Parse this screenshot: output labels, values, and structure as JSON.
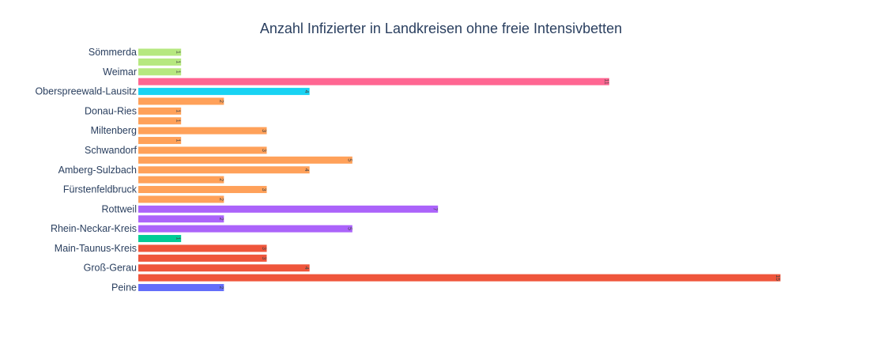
{
  "chart_data": {
    "type": "bar",
    "orientation": "horizontal",
    "title": "Anzahl Infizierter in Landkreisen ohne freie Intensivbetten",
    "xlabel": "",
    "ylabel": "",
    "xlim": [
      0,
      15.6
    ],
    "grid": false,
    "legend": "none",
    "bars": [
      {
        "label": "Sömmerda",
        "value": 1,
        "color": "#b6e880"
      },
      {
        "label": "",
        "value": 1,
        "color": "#b6e880"
      },
      {
        "label": "Weimar",
        "value": 1,
        "color": "#b6e880"
      },
      {
        "label": "",
        "value": 11,
        "color": "#ff6692"
      },
      {
        "label": "Oberspreewald-Lausitz",
        "value": 4,
        "color": "#19d3f3"
      },
      {
        "label": "",
        "value": 2,
        "color": "#ffa15a"
      },
      {
        "label": "Donau-Ries",
        "value": 1,
        "color": "#ffa15a"
      },
      {
        "label": "",
        "value": 1,
        "color": "#ffa15a"
      },
      {
        "label": "Miltenberg",
        "value": 3,
        "color": "#ffa15a"
      },
      {
        "label": "",
        "value": 1,
        "color": "#ffa15a"
      },
      {
        "label": "Schwandorf",
        "value": 3,
        "color": "#ffa15a"
      },
      {
        "label": "",
        "value": 5,
        "color": "#ffa15a"
      },
      {
        "label": "Amberg-Sulzbach",
        "value": 4,
        "color": "#ffa15a"
      },
      {
        "label": "",
        "value": 2,
        "color": "#ffa15a"
      },
      {
        "label": "Fürstenfeldbruck",
        "value": 3,
        "color": "#ffa15a"
      },
      {
        "label": "",
        "value": 2,
        "color": "#ffa15a"
      },
      {
        "label": "Rottweil",
        "value": 7,
        "color": "#ab63fa"
      },
      {
        "label": "",
        "value": 2,
        "color": "#ab63fa"
      },
      {
        "label": "Rhein-Neckar-Kreis",
        "value": 5,
        "color": "#ab63fa"
      },
      {
        "label": "",
        "value": 1,
        "color": "#00cc96"
      },
      {
        "label": "Main-Taunus-Kreis",
        "value": 3,
        "color": "#ef553b"
      },
      {
        "label": "",
        "value": 3,
        "color": "#ef553b"
      },
      {
        "label": "Groß-Gerau",
        "value": 4,
        "color": "#ef553b"
      },
      {
        "label": "",
        "value": 15,
        "color": "#ef553b"
      },
      {
        "label": "Peine",
        "value": 2,
        "color": "#636efa"
      }
    ]
  }
}
